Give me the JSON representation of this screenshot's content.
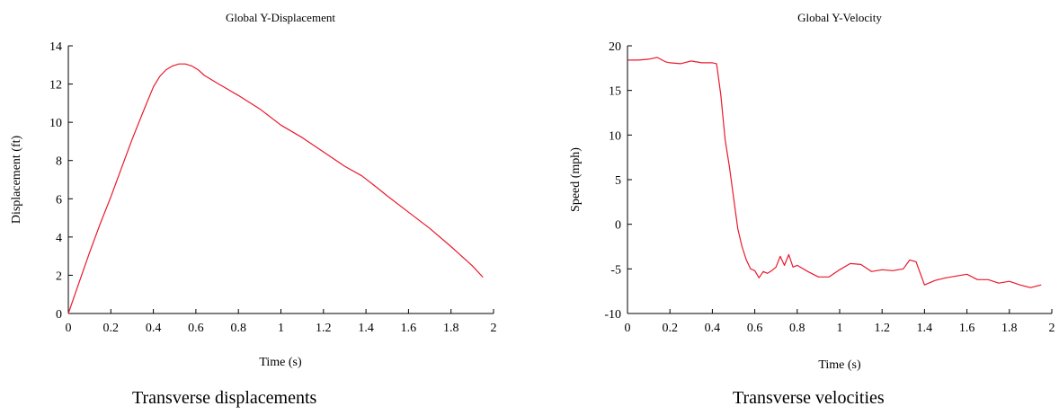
{
  "chart_data": [
    {
      "type": "line",
      "title": "Global Y-Displacement",
      "xlabel": "Time (s)",
      "ylabel": "Displacement (ft)",
      "xlim": [
        0,
        2
      ],
      "ylim": [
        0,
        14
      ],
      "xticks": [
        0,
        0.2,
        0.4,
        0.6,
        0.8,
        1,
        1.2,
        1.4,
        1.6,
        1.8,
        2
      ],
      "yticks": [
        0,
        2,
        4,
        6,
        8,
        10,
        12,
        14
      ],
      "grid": false,
      "legend": "none",
      "color": "#e8192c",
      "series": [
        {
          "x": [
            0,
            0.05,
            0.1,
            0.15,
            0.2,
            0.25,
            0.3,
            0.35,
            0.4,
            0.43,
            0.46,
            0.49,
            0.52,
            0.55,
            0.58,
            0.61,
            0.64,
            0.7,
            0.8,
            0.9,
            1.0,
            1.1,
            1.2,
            1.3,
            1.38,
            1.45,
            1.5,
            1.6,
            1.7,
            1.8,
            1.9,
            1.95
          ],
          "y": [
            0,
            1.6,
            3.2,
            4.7,
            6.1,
            7.6,
            9.1,
            10.5,
            11.85,
            12.4,
            12.75,
            12.95,
            13.05,
            13.05,
            12.95,
            12.75,
            12.45,
            12.05,
            11.4,
            10.7,
            9.85,
            9.2,
            8.45,
            7.7,
            7.2,
            6.6,
            6.15,
            5.3,
            4.45,
            3.5,
            2.5,
            1.9
          ]
        }
      ],
      "caption": "Transverse displacements"
    },
    {
      "type": "line",
      "title": "Global Y-Velocity",
      "xlabel": "Time (s)",
      "ylabel": "Speed (mph)",
      "xlim": [
        0,
        2
      ],
      "ylim": [
        -10,
        20
      ],
      "xticks": [
        0,
        0.2,
        0.4,
        0.6,
        0.8,
        1,
        1.2,
        1.4,
        1.6,
        1.8,
        2
      ],
      "yticks": [
        -10,
        -5,
        0,
        5,
        10,
        15,
        20
      ],
      "grid": false,
      "legend": "none",
      "color": "#e8192c",
      "series": [
        {
          "x": [
            0,
            0.05,
            0.1,
            0.14,
            0.18,
            0.2,
            0.25,
            0.3,
            0.35,
            0.4,
            0.42,
            0.44,
            0.46,
            0.48,
            0.5,
            0.52,
            0.54,
            0.56,
            0.58,
            0.6,
            0.62,
            0.64,
            0.66,
            0.68,
            0.7,
            0.72,
            0.74,
            0.76,
            0.78,
            0.8,
            0.85,
            0.9,
            0.95,
            1.0,
            1.05,
            1.1,
            1.15,
            1.2,
            1.25,
            1.3,
            1.33,
            1.36,
            1.38,
            1.4,
            1.45,
            1.5,
            1.55,
            1.6,
            1.65,
            1.7,
            1.75,
            1.8,
            1.85,
            1.9,
            1.95
          ],
          "y": [
            18.4,
            18.4,
            18.5,
            18.7,
            18.2,
            18.1,
            18.0,
            18.3,
            18.1,
            18.1,
            18.0,
            14.5,
            9.5,
            6.5,
            3.0,
            -0.5,
            -2.5,
            -4.0,
            -5.0,
            -5.2,
            -6.0,
            -5.3,
            -5.5,
            -5.2,
            -4.8,
            -3.6,
            -4.6,
            -3.4,
            -4.8,
            -4.6,
            -5.3,
            -5.9,
            -5.9,
            -5.1,
            -4.4,
            -4.5,
            -5.3,
            -5.1,
            -5.2,
            -5.0,
            -4.0,
            -4.2,
            -5.5,
            -6.8,
            -6.3,
            -6.0,
            -5.8,
            -5.6,
            -6.2,
            -6.2,
            -6.6,
            -6.4,
            -6.8,
            -7.1,
            -6.8
          ]
        }
      ],
      "caption": "Transverse velocities"
    }
  ]
}
